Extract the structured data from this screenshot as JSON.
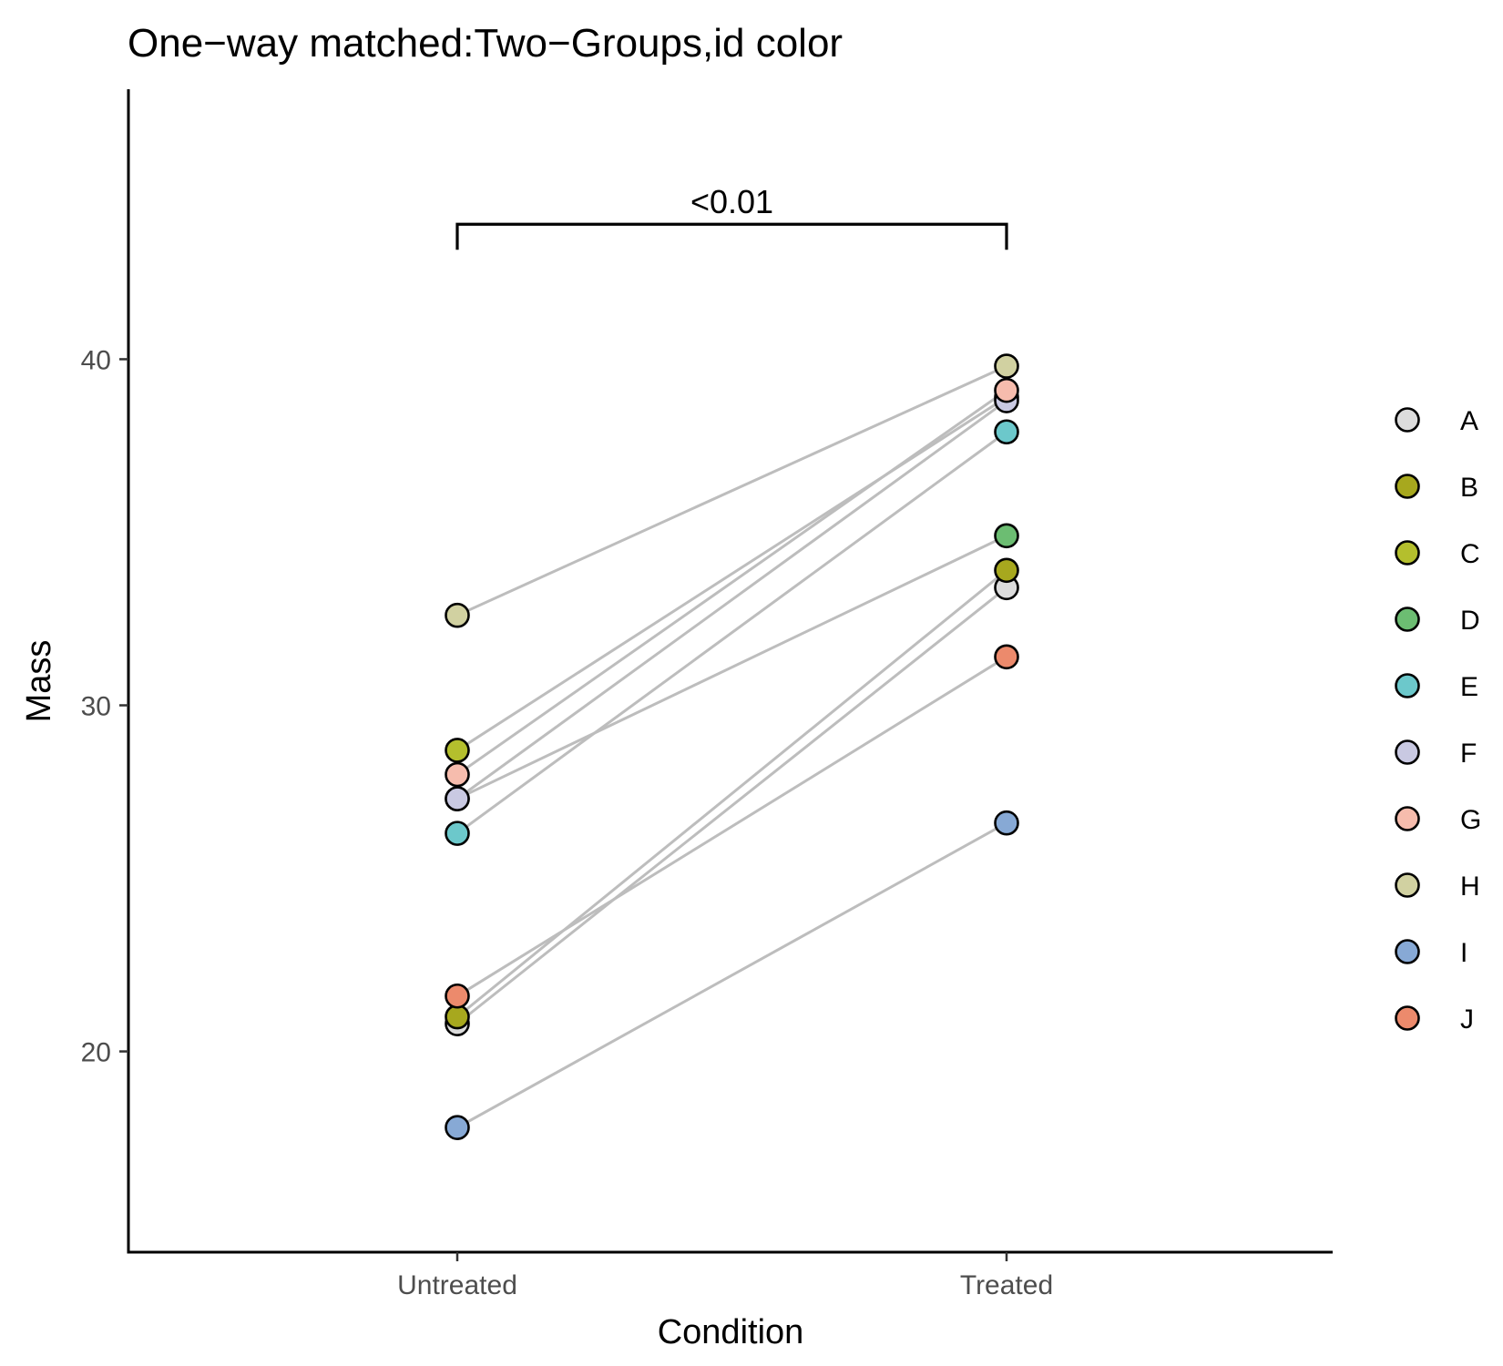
{
  "chart_data": {
    "type": "scatter",
    "title": "One−way matched:Two−Groups,id color",
    "xlabel": "Condition",
    "ylabel": "Mass",
    "categories": [
      "Untreated",
      "Treated"
    ],
    "ylim": [
      14.2,
      47.8
    ],
    "yticks": [
      20,
      30,
      40
    ],
    "grid": false,
    "legend_position": "right",
    "series": [
      {
        "name": "A",
        "color": "#dcdcdc",
        "values": [
          20.8,
          33.4
        ]
      },
      {
        "name": "B",
        "color": "#a7a81e",
        "values": [
          21.0,
          33.9
        ]
      },
      {
        "name": "C",
        "color": "#b4bf2d",
        "values": [
          28.7,
          38.9
        ]
      },
      {
        "name": "D",
        "color": "#6cbd72",
        "values": [
          27.3,
          34.9
        ]
      },
      {
        "name": "E",
        "color": "#6cc8cb",
        "values": [
          26.3,
          37.9
        ]
      },
      {
        "name": "F",
        "color": "#c9c9e2",
        "values": [
          27.3,
          38.8
        ]
      },
      {
        "name": "G",
        "color": "#f6bcad",
        "values": [
          28.0,
          39.1
        ]
      },
      {
        "name": "H",
        "color": "#d1d1a1",
        "values": [
          32.6,
          39.8
        ]
      },
      {
        "name": "I",
        "color": "#87a9d5",
        "values": [
          17.8,
          26.6
        ]
      },
      {
        "name": "J",
        "color": "#ec8a6c",
        "values": [
          21.6,
          31.4
        ]
      }
    ],
    "annotations": [
      {
        "text": "<0.01",
        "between": [
          "Untreated",
          "Treated"
        ],
        "y": 43.9
      }
    ]
  }
}
